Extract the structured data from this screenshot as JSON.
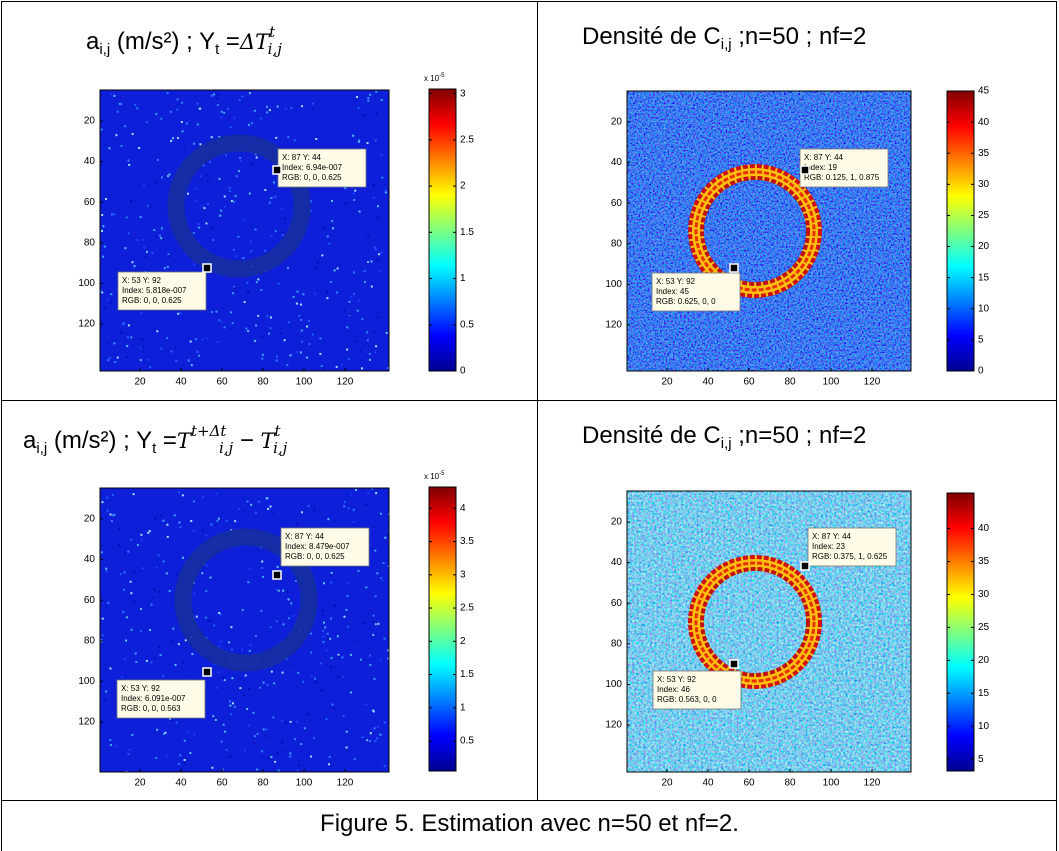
{
  "panels": [
    {
      "title": [
        {
          "text": "a"
        },
        {
          "text": "i,j",
          "style": "sub"
        },
        {
          "text": " (m/s²) ; Y"
        },
        {
          "text": "t",
          "style": "sub"
        },
        {
          "text": " ="
        },
        {
          "text": "ΔT",
          "style": "math"
        },
        {
          "text": "t",
          "style": "sup"
        },
        {
          "text": "i,j",
          "style": "sub"
        }
      ],
      "xticks": [
        20,
        40,
        60,
        80,
        100,
        120
      ],
      "yticks": [
        20,
        40,
        60,
        80,
        100,
        120
      ],
      "colorbar": {
        "clim": [
          0,
          3.05
        ],
        "ticks": [
          0,
          0.5,
          1,
          1.5,
          2,
          2.5,
          3
        ],
        "exponent": {
          "base": "x 10",
          "power": "-5"
        }
      },
      "datatips": [
        {
          "lines": [
            "X: 87 Y: 44",
            "Index: 6.94e-007",
            "RGB: 0, 0, 0.625"
          ]
        },
        {
          "lines": [
            "X: 53 Y: 92",
            "Index: 5.818e-007",
            "RGB: 0, 0, 0.625"
          ]
        }
      ]
    },
    {
      "title": [
        {
          "text": "Densité de C"
        },
        {
          "text": "i,j",
          "style": "sub"
        },
        {
          "text": " ;n=50 ; nf=2"
        }
      ],
      "xticks": [
        20,
        40,
        60,
        80,
        100,
        120
      ],
      "yticks": [
        20,
        40,
        60,
        80,
        100,
        120
      ],
      "colorbar": {
        "clim": [
          0,
          45
        ],
        "ticks": [
          0,
          5,
          10,
          15,
          20,
          25,
          30,
          35,
          40,
          45
        ]
      },
      "datatips": [
        {
          "lines": [
            "X: 87 Y: 44",
            "Index: 19",
            "RGB: 0.125, 1, 0.875"
          ]
        },
        {
          "lines": [
            "X: 53 Y: 92",
            "Index: 45",
            "RGB: 0.625, 0, 0"
          ]
        }
      ]
    },
    {
      "title": [
        {
          "text": "a"
        },
        {
          "text": "i,j",
          "style": "sub"
        },
        {
          "text": " (m/s²) ; Y"
        },
        {
          "text": "t",
          "style": "sub"
        },
        {
          "text": " ="
        },
        {
          "text": "T",
          "style": "math"
        },
        {
          "text": "t+Δt",
          "style": "sup"
        },
        {
          "text": "i,j",
          "style": "sub"
        },
        {
          "text": " − "
        },
        {
          "text": "T",
          "style": "math"
        },
        {
          "text": "t",
          "style": "sup"
        },
        {
          "text": "i,j",
          "style": "sub"
        }
      ],
      "xticks": [
        20,
        40,
        60,
        80,
        100,
        120
      ],
      "yticks": [
        20,
        40,
        60,
        80,
        100,
        120
      ],
      "colorbar": {
        "clim": [
          0.05,
          4.32
        ],
        "ticks": [
          0.5,
          1,
          1.5,
          2,
          2.5,
          3,
          3.5,
          4
        ],
        "exponent": {
          "base": "x 10",
          "power": "-5"
        }
      },
      "datatips": [
        {
          "lines": [
            "X: 87 Y: 44",
            "Index: 8.479e-007",
            "RGB: 0, 0, 0.625"
          ]
        },
        {
          "lines": [
            "X: 53 Y: 92",
            "Index: 6.091e-007",
            "RGB: 0, 0, 0.563"
          ]
        }
      ]
    },
    {
      "title": [
        {
          "text": "Densité de C"
        },
        {
          "text": "i,j",
          "style": "sub"
        },
        {
          "text": " ;n=50 ; nf=2"
        }
      ],
      "xticks": [
        20,
        40,
        60,
        80,
        100,
        120
      ],
      "yticks": [
        20,
        40,
        60,
        80,
        100,
        120
      ],
      "colorbar": {
        "clim": [
          3.2,
          45.4
        ],
        "ticks": [
          5,
          10,
          15,
          20,
          25,
          30,
          35,
          40
        ]
      },
      "datatips": [
        {
          "lines": [
            "X: 87 Y: 44",
            "Index: 23",
            "RGB: 0.375, 1, 0.625"
          ]
        },
        {
          "lines": [
            "X: 53 Y: 92",
            "Index: 46",
            "RGB: 0.563, 0, 0"
          ]
        }
      ]
    }
  ],
  "caption": "Figure 5. Estimation avec n=50 et nf=2."
}
